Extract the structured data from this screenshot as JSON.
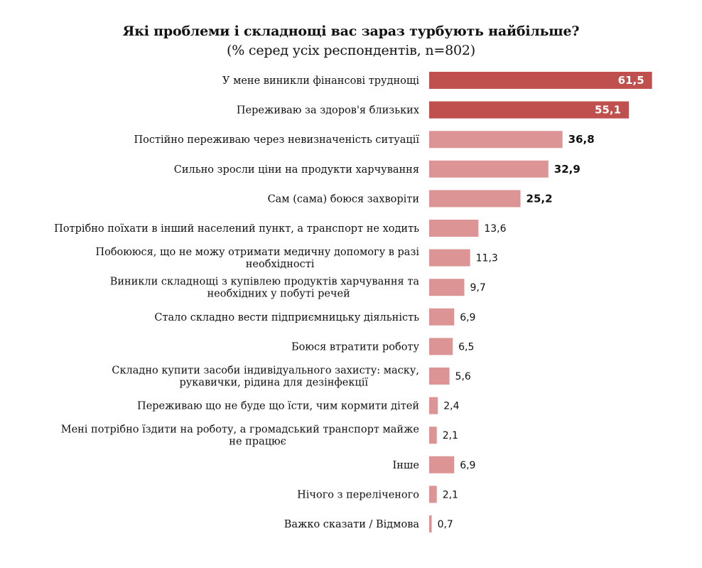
{
  "chart_data": {
    "type": "bar",
    "orientation": "horizontal",
    "title": "Які проблеми і складнощі вас зараз турбують найбільше?",
    "subtitle": "(% серед усіх респондентів, n=802)",
    "xlabel": "",
    "ylabel": "",
    "xlim": [
      0,
      62
    ],
    "grid": false,
    "colors": {
      "highlight": "#c0504d",
      "normal": "#dc9594"
    },
    "bars": [
      {
        "label": [
          "У мене виникли фінансові труднощі"
        ],
        "value": 61.5,
        "value_text": "61,5",
        "style": "highlight"
      },
      {
        "label": [
          "Переживаю за здоров'я близьких"
        ],
        "value": 55.1,
        "value_text": "55,1",
        "style": "highlight"
      },
      {
        "label": [
          "Постійно переживаю через невизначеність ситуації"
        ],
        "value": 36.8,
        "value_text": "36,8",
        "style": "bold"
      },
      {
        "label": [
          "Сильно зросли ціни на продукти харчування"
        ],
        "value": 32.9,
        "value_text": "32,9",
        "style": "bold"
      },
      {
        "label": [
          "Сам (сама) боюся захворіти"
        ],
        "value": 25.2,
        "value_text": "25,2",
        "style": "bold"
      },
      {
        "label": [
          "Потрібно поїхати в інший населений пункт, а транспорт не ходить"
        ],
        "value": 13.6,
        "value_text": "13,6",
        "style": "normal"
      },
      {
        "label": [
          "Побоююся, що не можу отримати медичну допомогу в разі",
          "необхідності"
        ],
        "value": 11.3,
        "value_text": "11,3",
        "style": "normal"
      },
      {
        "label": [
          "Виникли складнощі з купівлею продуктів харчування та",
          "необхідних у побуті речей"
        ],
        "value": 9.7,
        "value_text": "9,7",
        "style": "normal"
      },
      {
        "label": [
          "Стало складно вести підприємницьку діяльність"
        ],
        "value": 6.9,
        "value_text": "6,9",
        "style": "normal"
      },
      {
        "label": [
          "Боюся втратити роботу"
        ],
        "value": 6.5,
        "value_text": "6,5",
        "style": "normal"
      },
      {
        "label": [
          "Складно купити засоби індивідуального захисту: маску,",
          "рукавички, рідина для дезінфекції"
        ],
        "value": 5.6,
        "value_text": "5,6",
        "style": "normal"
      },
      {
        "label": [
          "Переживаю що не буде що їсти, чим кормити дітей"
        ],
        "value": 2.4,
        "value_text": "2,4",
        "style": "normal"
      },
      {
        "label": [
          "Мені потрібно їздити на роботу, а громадський транспорт майже",
          "не працює"
        ],
        "value": 2.1,
        "value_text": "2,1",
        "style": "normal"
      },
      {
        "label": [
          "Інше"
        ],
        "value": 6.9,
        "value_text": "6,9",
        "style": "normal"
      },
      {
        "label": [
          "Нічого з переліченого"
        ],
        "value": 2.1,
        "value_text": "2,1",
        "style": "normal"
      },
      {
        "label": [
          "Важко сказати / Відмова"
        ],
        "value": 0.7,
        "value_text": "0,7",
        "style": "normal"
      }
    ]
  }
}
